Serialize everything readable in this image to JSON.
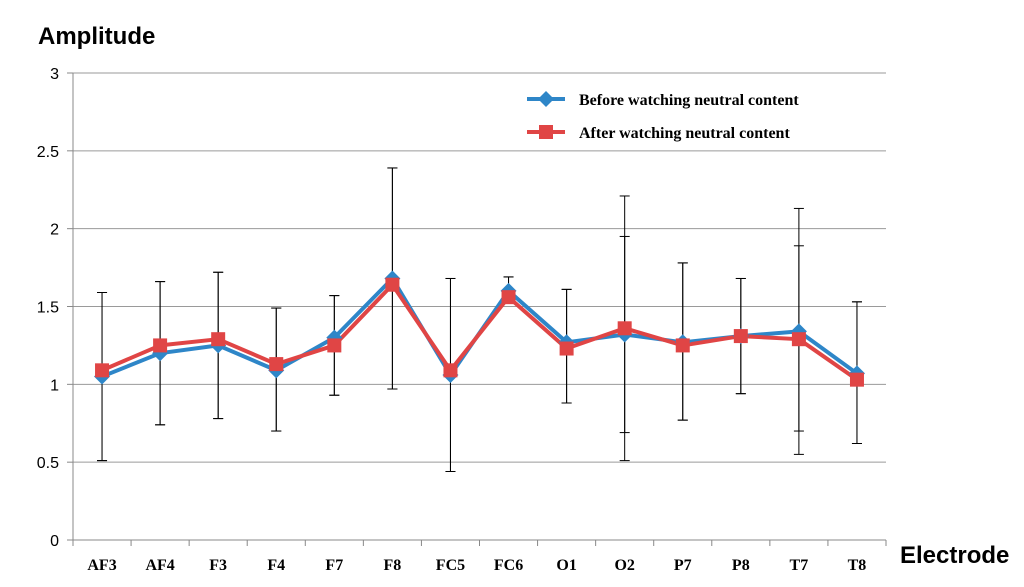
{
  "chart_data": {
    "type": "line",
    "title": "",
    "ylabel": "Amplitude",
    "xlabel": "Electrode",
    "ylim": [
      0,
      3
    ],
    "yticks": [
      0,
      0.5,
      1,
      1.5,
      2,
      2.5,
      3
    ],
    "ytick_labels": [
      "0",
      "0.5",
      "1",
      "1.5",
      "2",
      "2.5",
      "3"
    ],
    "grid": true,
    "legend_position": "top-right",
    "categories": [
      "AF3",
      "AF4",
      "F3",
      "F4",
      "F7",
      "F8",
      "FC5",
      "FC6",
      "O1",
      "O2",
      "P7",
      "P8",
      "T7",
      "T8"
    ],
    "series": [
      {
        "name": "Before watching neutral content",
        "color": "#2E86C8",
        "marker": "diamond",
        "values": [
          1.05,
          1.2,
          1.25,
          1.09,
          1.3,
          1.68,
          1.06,
          1.6,
          1.27,
          1.32,
          1.27,
          1.31,
          1.34,
          1.07
        ],
        "err_low": [
          0.51,
          0.74,
          0.78,
          0.7,
          0.93,
          0.97,
          0.44,
          1.53,
          0.88,
          0.51,
          0.77,
          0.94,
          0.55,
          0.62
        ],
        "err_high": [
          1.59,
          1.66,
          1.72,
          1.49,
          1.57,
          2.39,
          1.68,
          1.69,
          1.61,
          2.21,
          1.78,
          1.68,
          2.13,
          1.53
        ]
      },
      {
        "name": "After watching neutral content",
        "color": "#E04545",
        "marker": "square",
        "values": [
          1.09,
          1.25,
          1.29,
          1.13,
          1.25,
          1.64,
          1.09,
          1.56,
          1.23,
          1.36,
          1.25,
          1.31,
          1.29,
          1.03
        ],
        "err_low": [
          0.51,
          0.74,
          0.78,
          0.7,
          0.93,
          0.97,
          0.44,
          1.53,
          0.88,
          0.69,
          0.77,
          0.94,
          0.7,
          0.62
        ],
        "err_high": [
          1.59,
          1.66,
          1.72,
          1.49,
          1.57,
          2.39,
          1.68,
          1.69,
          1.61,
          1.95,
          1.78,
          1.68,
          1.89,
          1.53
        ]
      }
    ]
  }
}
